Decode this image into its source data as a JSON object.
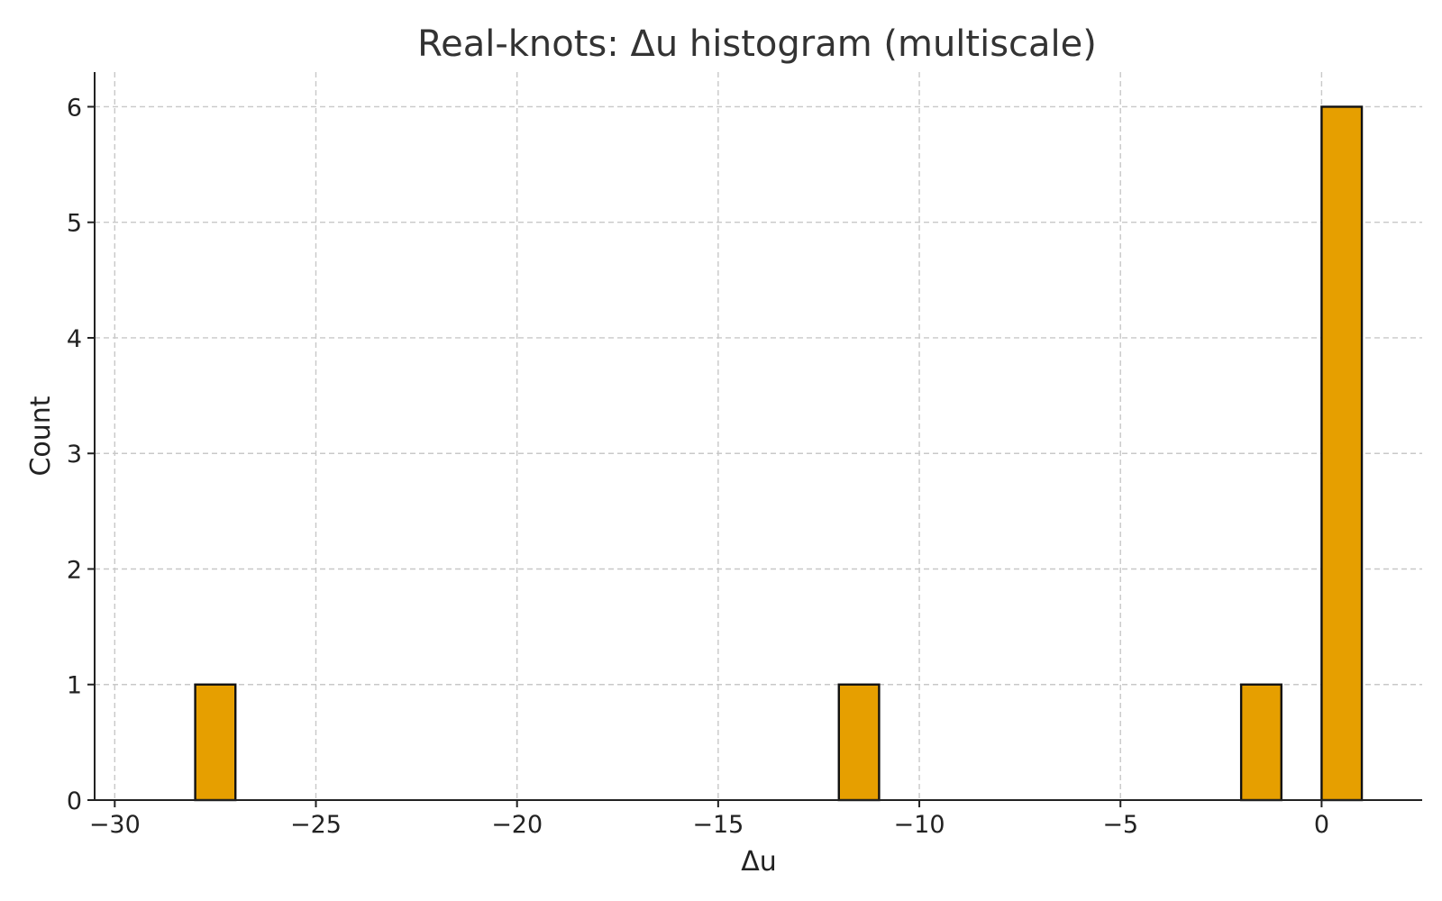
{
  "chart_data": {
    "type": "bar",
    "title": "Real-knots: Δu histogram (multiscale)",
    "xlabel": "Δu",
    "ylabel": "Count",
    "xlim": [
      -30.5,
      2.5
    ],
    "ylim": [
      0,
      6.3
    ],
    "xticks": [
      -30,
      -25,
      -20,
      -15,
      -10,
      -5,
      0
    ],
    "xtick_labels": [
      "−30",
      "−25",
      "−20",
      "−15",
      "−10",
      "−5",
      "0"
    ],
    "yticks": [
      0,
      1,
      2,
      3,
      4,
      5,
      6
    ],
    "ytick_labels": [
      "0",
      "1",
      "2",
      "3",
      "4",
      "5",
      "6"
    ],
    "grid": true,
    "bar_color": "#E69F00",
    "bins": [
      {
        "x0": -28,
        "x1": -27,
        "count": 1
      },
      {
        "x0": -12,
        "x1": -11,
        "count": 1
      },
      {
        "x0": -2,
        "x1": -1,
        "count": 1
      },
      {
        "x0": 0,
        "x1": 1,
        "count": 6
      }
    ]
  }
}
